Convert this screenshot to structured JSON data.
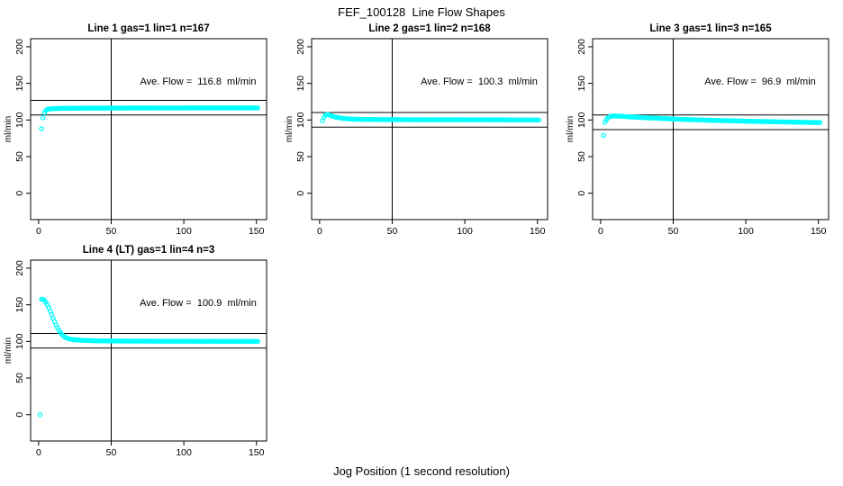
{
  "figure": {
    "title": "FEF_100128  Line Flow Shapes",
    "xlabel": "Jog Position (1 second resolution)",
    "colors": {
      "points": "#00FFFF",
      "axis": "#000000",
      "background": "#FFFFFF",
      "text": "#000000"
    }
  },
  "chart_data": [
    {
      "type": "scatter",
      "title": "Line 1 gas=1 lin=1 n=167",
      "annotation": "Ave. Flow =  116.8  ml/min",
      "ave_flow": 116.8,
      "n": 167,
      "ylabel": "ml/min",
      "xlim": [
        -5.5,
        157
      ],
      "ylim": [
        -36,
        211
      ],
      "xticks": [
        0,
        50,
        100,
        150
      ],
      "yticks": [
        0,
        50,
        100,
        150,
        200
      ],
      "vline_x": 50,
      "hlines": [
        106.8,
        126.8
      ],
      "grid": false,
      "legend": null,
      "points": [
        [
          2,
          88
        ],
        [
          3,
          103
        ],
        [
          4,
          110
        ],
        [
          5,
          113
        ],
        [
          6,
          114.5
        ],
        [
          8,
          115.3
        ],
        [
          12,
          115.7
        ],
        [
          20,
          116
        ],
        [
          40,
          116.2
        ],
        [
          80,
          116.4
        ],
        [
          120,
          116.5
        ],
        [
          151,
          116.5
        ]
      ]
    },
    {
      "type": "scatter",
      "title": "Line 2 gas=1 lin=2 n=168",
      "annotation": "Ave. Flow =  100.3  ml/min",
      "ave_flow": 100.3,
      "n": 168,
      "ylabel": "ml/min",
      "xlim": [
        -5.5,
        157
      ],
      "ylim": [
        -36,
        211
      ],
      "xticks": [
        0,
        50,
        100,
        150
      ],
      "yticks": [
        0,
        50,
        100,
        150,
        200
      ],
      "vline_x": 50,
      "hlines": [
        90.3,
        110.3
      ],
      "grid": false,
      "legend": null,
      "points": [
        [
          2,
          99
        ],
        [
          3,
          103.5
        ],
        [
          4,
          106.5
        ],
        [
          5,
          107.5
        ],
        [
          6,
          107.5
        ],
        [
          7,
          106.5
        ],
        [
          9,
          105
        ],
        [
          11,
          104
        ],
        [
          14,
          102.8
        ],
        [
          18,
          101.8
        ],
        [
          25,
          101
        ],
        [
          40,
          100.6
        ],
        [
          70,
          100.4
        ],
        [
          110,
          100.3
        ],
        [
          151,
          100
        ]
      ]
    },
    {
      "type": "scatter",
      "title": "Line 3 gas=1 lin=3 n=165",
      "annotation": "Ave. Flow =  96.9  ml/min",
      "ave_flow": 96.9,
      "n": 165,
      "ylabel": "ml/min",
      "xlim": [
        -5.5,
        157
      ],
      "ylim": [
        -36,
        211
      ],
      "xticks": [
        0,
        50,
        100,
        150
      ],
      "yticks": [
        0,
        50,
        100,
        150,
        200
      ],
      "vline_x": 50,
      "hlines": [
        86.9,
        106.9
      ],
      "grid": false,
      "legend": null,
      "points": [
        [
          2,
          79
        ],
        [
          3,
          97
        ],
        [
          4,
          100.5
        ],
        [
          5,
          103
        ],
        [
          7,
          105
        ],
        [
          10,
          105.5
        ],
        [
          15,
          105
        ],
        [
          20,
          104.3
        ],
        [
          30,
          103.2
        ],
        [
          40,
          102.3
        ],
        [
          50,
          101.4
        ],
        [
          60,
          100.6
        ],
        [
          80,
          99.4
        ],
        [
          100,
          98.4
        ],
        [
          120,
          97.6
        ],
        [
          135,
          97
        ],
        [
          151,
          96.5
        ]
      ]
    },
    {
      "type": "scatter",
      "title": "Line 4 (LT) gas=1 lin=4 n=3",
      "annotation": "Ave. Flow =  100.9  ml/min",
      "ave_flow": 100.9,
      "n": 3,
      "ylabel": "ml/min",
      "xlim": [
        -5.5,
        157
      ],
      "ylim": [
        -36,
        211
      ],
      "xticks": [
        0,
        50,
        100,
        150
      ],
      "yticks": [
        0,
        50,
        100,
        150,
        200
      ],
      "vline_x": 50,
      "hlines": [
        90.9,
        110.9
      ],
      "grid": false,
      "legend": null,
      "points": [
        [
          1,
          0
        ],
        [
          2,
          157.5
        ],
        [
          3,
          157.5
        ],
        [
          4,
          156
        ],
        [
          5,
          153.5
        ],
        [
          6,
          150
        ],
        [
          7,
          146
        ],
        [
          8,
          141.5
        ],
        [
          9,
          136.5
        ],
        [
          10,
          131.5
        ],
        [
          11,
          127
        ],
        [
          12,
          122.5
        ],
        [
          13,
          118.5
        ],
        [
          14,
          115
        ],
        [
          15,
          112
        ],
        [
          16,
          109.5
        ],
        [
          17,
          107.5
        ],
        [
          18,
          106
        ],
        [
          19,
          104.8
        ],
        [
          20,
          104
        ],
        [
          22,
          103
        ],
        [
          25,
          102.2
        ],
        [
          30,
          101.4
        ],
        [
          40,
          100.8
        ],
        [
          60,
          100.4
        ],
        [
          100,
          100.2
        ],
        [
          151,
          100
        ]
      ]
    }
  ]
}
